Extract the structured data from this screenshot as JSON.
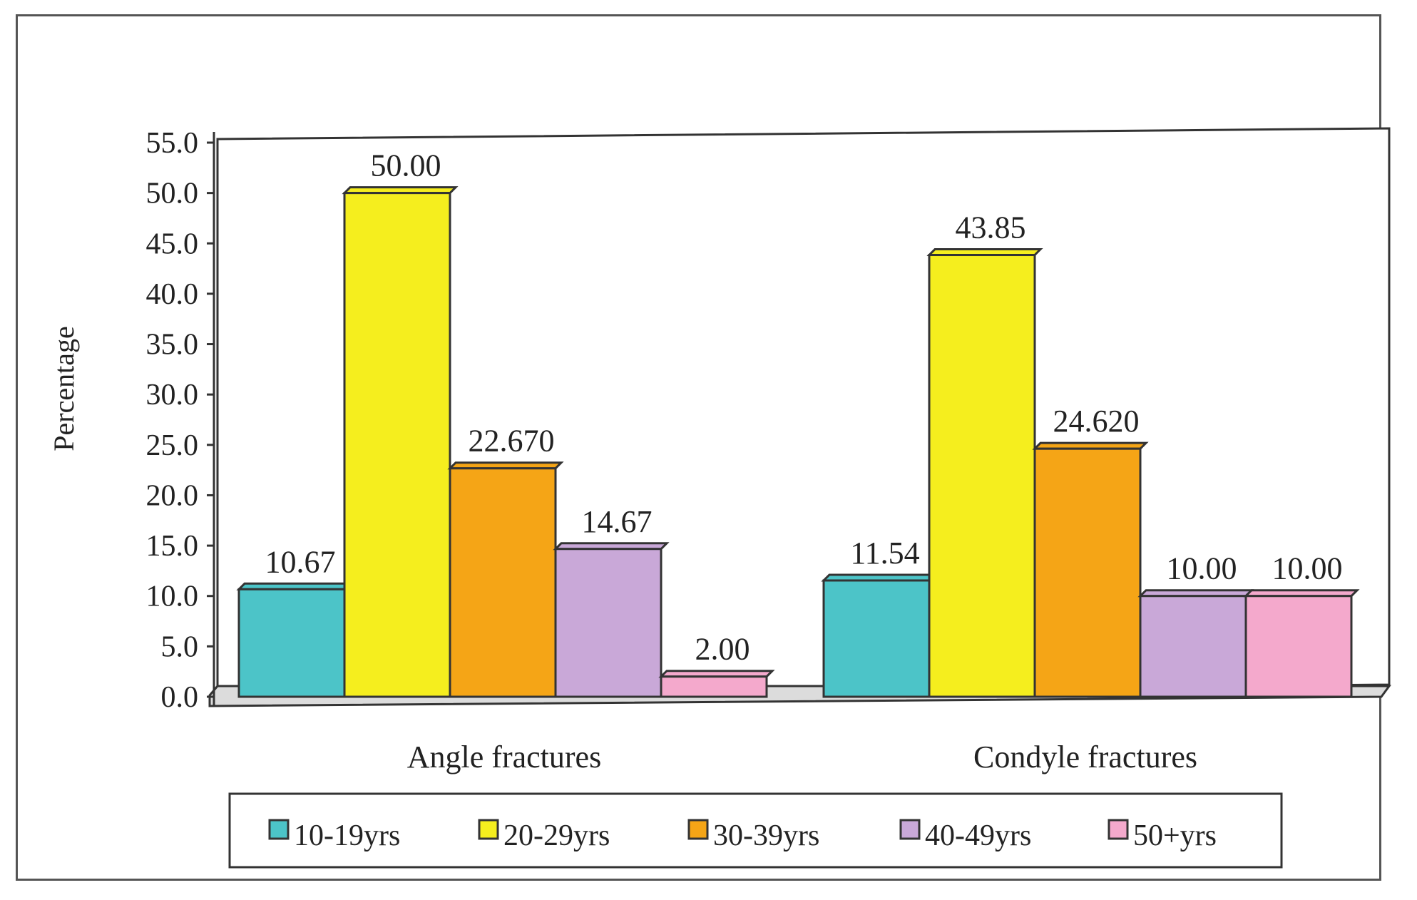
{
  "chart_data": {
    "type": "bar",
    "title": "",
    "xlabel": "",
    "ylabel": "Percentage",
    "ylim": [
      0,
      55
    ],
    "yticks": [
      "0.0",
      "5.0",
      "10.0",
      "15.0",
      "20.0",
      "25.0",
      "30.0",
      "35.0",
      "40.0",
      "45.0",
      "50.0",
      "55.0"
    ],
    "categories": [
      "Angle fractures",
      "Condyle fractures"
    ],
    "legend_position": "bottom",
    "series": [
      {
        "name": "10-19yrs",
        "color": "#4cc4c8",
        "values": [
          10.67,
          11.54
        ],
        "labels": [
          "10.67",
          "11.54"
        ]
      },
      {
        "name": "20-29yrs",
        "color": "#f5ee1e",
        "values": [
          50.0,
          43.85
        ],
        "labels": [
          "50.00",
          "43.85"
        ]
      },
      {
        "name": "30-39yrs",
        "color": "#f5a516",
        "values": [
          22.67,
          24.62
        ],
        "labels": [
          "22.670",
          "24.620"
        ]
      },
      {
        "name": "40-49yrs",
        "color": "#c9a8d8",
        "values": [
          14.67,
          10.0
        ],
        "labels": [
          "14.67",
          "10.00"
        ]
      },
      {
        "name": "50+yrs",
        "color": "#f4a9cc",
        "values": [
          2.0,
          10.0
        ],
        "labels": [
          "2.00",
          "10.00"
        ]
      }
    ]
  }
}
